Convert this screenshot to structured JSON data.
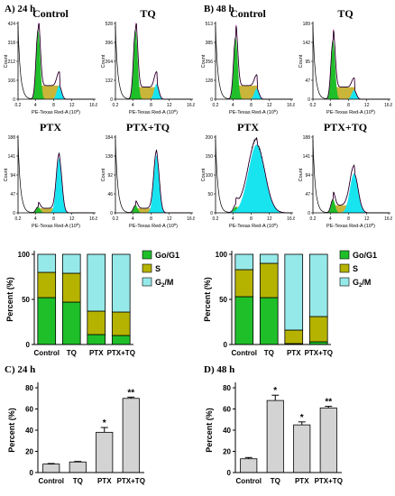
{
  "panels": {
    "a": "A) 24 h",
    "b": "B) 48 h",
    "c": "C) 24 h",
    "d": "D) 48 h"
  },
  "histograms": {
    "x_axis_label": "PE-Texas Red-A",
    "x_axis_unit": "(10",
    "x_axis_exp": "6",
    "x_axis_close": ")",
    "y_axis_label": "Count",
    "x_ticks": [
      "0.2",
      "4",
      "8",
      "12",
      "16.8"
    ],
    "colors": {
      "g1": "#1fbf2a",
      "s": "#c8b53a",
      "g2m": "#18e4f0",
      "fit": "#e23bd7",
      "trace": "#000000"
    },
    "items": [
      {
        "title": "Control",
        "y_ticks": [
          "0",
          "106",
          "212",
          "318",
          "424"
        ],
        "g1": 0.92,
        "s": 0.18,
        "g2m": 0.18,
        "g2m_width": 0.5
      },
      {
        "title": "TQ",
        "y_ticks": [
          "0",
          "132",
          "264",
          "396",
          "528"
        ],
        "g1": 0.92,
        "s": 0.16,
        "g2m": 0.2,
        "g2m_width": 0.5
      },
      {
        "title": "Control",
        "y_ticks": [
          "0",
          "128",
          "256",
          "385",
          "513"
        ],
        "g1": 0.82,
        "s": 0.18,
        "g2m": 0.14,
        "g2m_width": 0.5
      },
      {
        "title": "TQ",
        "y_ticks": [
          "0",
          "47",
          "95",
          "142",
          "189"
        ],
        "g1": 0.78,
        "s": 0.16,
        "g2m": 0.12,
        "g2m_width": 0.5
      },
      {
        "title": "PTX",
        "y_ticks": [
          "0",
          "47",
          "94",
          "141",
          "188"
        ],
        "g1": 0.08,
        "s": 0.06,
        "g2m": 0.72,
        "g2m_width": 0.6
      },
      {
        "title": "PTX+TQ",
        "y_ticks": [
          "0",
          "46",
          "92",
          "138",
          "184"
        ],
        "g1": 0.1,
        "s": 0.06,
        "g2m": 0.76,
        "g2m_width": 0.6
      },
      {
        "title": "PTX",
        "y_ticks": [
          "0",
          "50",
          "100",
          "150",
          "200"
        ],
        "g1": 0.08,
        "s": 0.08,
        "g2m": 0.9,
        "g2m_width": 1.8
      },
      {
        "title": "PTX+TQ",
        "y_ticks": [
          "0",
          "47",
          "94",
          "141",
          "188"
        ],
        "g1": 0.18,
        "s": 0.1,
        "g2m": 0.52,
        "g2m_width": 0.9
      }
    ]
  },
  "chart_data": [
    {
      "type": "bar",
      "stacked": true,
      "ylabel": "Percent (%)",
      "ylim": [
        0,
        100
      ],
      "yticks": [
        0,
        50,
        100
      ],
      "categories": [
        "Control",
        "TQ",
        "PTX",
        "PTX+TQ"
      ],
      "series": [
        {
          "name": "Go/G1",
          "color": "#1fbf2a",
          "values": [
            52,
            47,
            11,
            10
          ]
        },
        {
          "name": "S",
          "color": "#b5b300",
          "values": [
            28,
            32,
            26,
            26
          ]
        },
        {
          "name": "G2/M",
          "color": "#96e9e9",
          "values": [
            20,
            21,
            63,
            64
          ]
        }
      ],
      "legend_position": "top-right"
    },
    {
      "type": "bar",
      "stacked": true,
      "ylabel": "Percent (%)",
      "ylim": [
        0,
        100
      ],
      "yticks": [
        0,
        50,
        100
      ],
      "categories": [
        "Control",
        "TQ",
        "PTX",
        "PTX+TQ"
      ],
      "series": [
        {
          "name": "Go/G1",
          "color": "#1fbf2a",
          "values": [
            53,
            52,
            1,
            3
          ]
        },
        {
          "name": "S",
          "color": "#b5b300",
          "values": [
            30,
            38,
            15,
            28
          ]
        },
        {
          "name": "G2/M",
          "color": "#96e9e9",
          "values": [
            17,
            10,
            84,
            69
          ]
        }
      ],
      "legend_position": "top-right"
    },
    {
      "type": "bar",
      "ylabel": "Percent (%)",
      "ylim": [
        0,
        80
      ],
      "yticks": [
        0,
        20,
        40,
        60,
        80
      ],
      "categories": [
        "Control",
        "TQ",
        "PTX",
        "PTX+TQ"
      ],
      "values": [
        8,
        10,
        38,
        70
      ],
      "errors": [
        0.5,
        0.5,
        4.5,
        1.2
      ],
      "annotations": [
        "",
        "",
        "*",
        "**"
      ],
      "color": "#d3d3d3"
    },
    {
      "type": "bar",
      "ylabel": "Percent (%)",
      "ylim": [
        0,
        80
      ],
      "yticks": [
        0,
        20,
        40,
        60,
        80
      ],
      "categories": [
        "Control",
        "TQ",
        "PTX",
        "PTX+TQ"
      ],
      "values": [
        13,
        68,
        45,
        61
      ],
      "errors": [
        1.2,
        5,
        2.8,
        1.5
      ],
      "annotations": [
        "",
        "*",
        "*",
        "**"
      ],
      "color": "#d3d3d3"
    }
  ]
}
